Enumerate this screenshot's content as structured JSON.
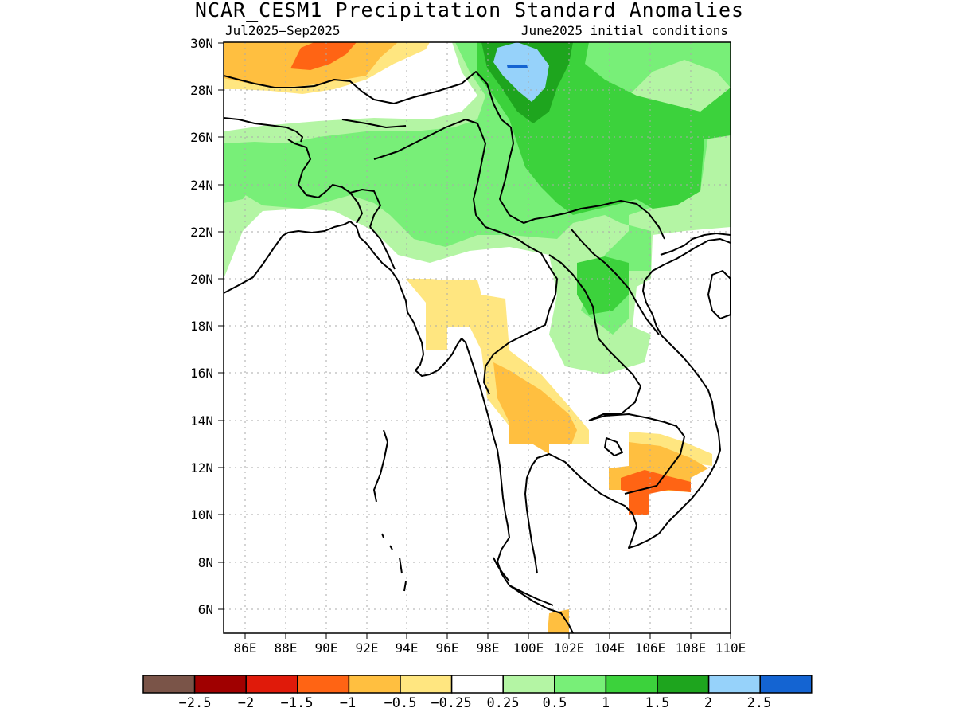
{
  "title": "NCAR_CESM1 Precipitation Standard Anomalies",
  "subtitle_left": "Jul2025–Sep2025",
  "subtitle_right": "June2025 initial conditions",
  "map": {
    "region": "South / Southeast Asia",
    "lat_range": [
      5,
      30
    ],
    "lon_range": [
      85,
      110
    ],
    "y_tick_labels": [
      "30N",
      "28N",
      "26N",
      "24N",
      "22N",
      "20N",
      "18N",
      "16N",
      "14N",
      "12N",
      "10N",
      "8N",
      "6N"
    ],
    "x_tick_labels": [
      "86E",
      "88E",
      "90E",
      "92E",
      "94E",
      "96E",
      "98E",
      "100E",
      "102E",
      "104E",
      "106E",
      "108E",
      "110E"
    ],
    "grid": "dotted"
  },
  "colorbar": {
    "labels": [
      "−2.5",
      "−2",
      "−1.5",
      "−1",
      "−0.5",
      "−0.25",
      "0.25",
      "0.5",
      "1",
      "1.5",
      "2",
      "2.5"
    ],
    "colors": [
      "#7a5448",
      "#a00000",
      "#e01a0a",
      "#ff6414",
      "#ffbf40",
      "#ffe680",
      "#ffffff",
      "#b4f5a4",
      "#78ef78",
      "#3cd23c",
      "#1ea51e",
      "#96d2fa",
      "#1464d2"
    ]
  },
  "colors": {
    "strong_neg": "#ff6414",
    "mod_neg": "#ffbf40",
    "weak_neg": "#ffe680",
    "weak_pos": "#b4f5a4",
    "mod_pos": "#78ef78",
    "strong_pos": "#3cd23c",
    "very_strong_pos": "#1ea51e",
    "extreme_pos": "#96d2fa"
  }
}
